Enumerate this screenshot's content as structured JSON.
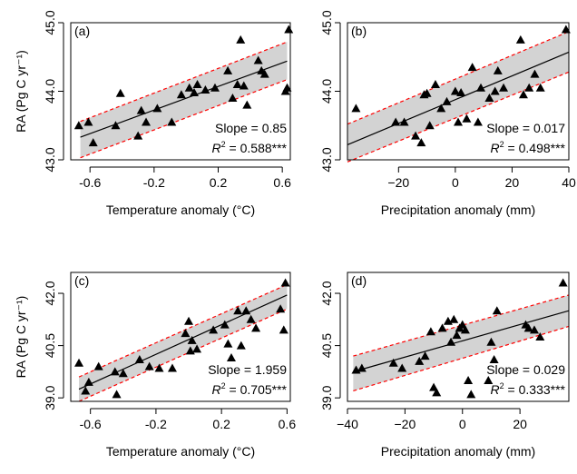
{
  "chart_data": [
    {
      "type": "scatter",
      "panel_label": "(a)",
      "xlabel": "Temperature anomaly (°C)",
      "ylabel": "RA (Pg C yr⁻¹)",
      "xlim": [
        -0.72,
        0.65
      ],
      "ylim": [
        43.0,
        45.0
      ],
      "xticks": [
        -0.6,
        -0.2,
        0.2,
        0.6
      ],
      "xtick_labels": [
        "-0.6",
        "-0.2",
        "0.2",
        "0.6"
      ],
      "yticks": [
        43.0,
        44.0,
        45.0
      ],
      "ytick_labels": [
        "43.0",
        "44.0",
        "45.0"
      ],
      "slope_text": "Slope = 0.85",
      "r2_value": "0.588***",
      "fit": {
        "x0": -0.66,
        "y0": 43.33,
        "x1": 0.63,
        "y1": 44.44
      },
      "ci_upper": {
        "x0": -0.66,
        "y0": 43.56,
        "x1": 0.63,
        "y1": 44.72
      },
      "ci_lower": {
        "x0": -0.66,
        "y0": 43.03,
        "x1": 0.63,
        "y1": 44.17
      },
      "x": [
        -0.67,
        -0.61,
        -0.58,
        -0.44,
        -0.41,
        -0.3,
        -0.28,
        -0.25,
        -0.18,
        -0.09,
        -0.03,
        0.02,
        0.05,
        0.07,
        0.12,
        0.18,
        0.26,
        0.29,
        0.32,
        0.34,
        0.36,
        0.38,
        0.45,
        0.47,
        0.49,
        0.62,
        0.63,
        0.64
      ],
      "y": [
        43.5,
        43.55,
        43.25,
        43.5,
        43.97,
        43.35,
        43.72,
        43.55,
        43.75,
        43.55,
        43.95,
        44.05,
        43.98,
        44.1,
        44.02,
        44.05,
        44.3,
        43.9,
        44.1,
        44.75,
        44.08,
        43.8,
        44.45,
        44.3,
        44.25,
        44.0,
        44.05,
        44.9
      ]
    },
    {
      "type": "scatter",
      "panel_label": "(b)",
      "xlabel": "Precipitation anomaly (mm)",
      "ylabel": "",
      "xlim": [
        -38,
        40
      ],
      "ylim": [
        43.0,
        45.0
      ],
      "xticks": [
        -20,
        0,
        20,
        40
      ],
      "xtick_labels": [
        "−20",
        "0",
        "20",
        "40"
      ],
      "yticks": [
        43.0,
        44.0,
        45.0
      ],
      "ytick_labels": [
        "43.0",
        "44.0",
        "45.0"
      ],
      "slope_text": "Slope = 0.017",
      "r2_value": "0.498***",
      "fit": {
        "x0": -38,
        "y0": 43.22,
        "x1": 40,
        "y1": 44.57
      },
      "ci_upper": {
        "x0": -38,
        "y0": 43.52,
        "x1": 40,
        "y1": 44.87
      },
      "ci_lower": {
        "x0": -38,
        "y0": 42.97,
        "x1": 40,
        "y1": 44.28
      },
      "x": [
        -35,
        -21,
        -18,
        -14,
        -12,
        -11,
        -10,
        -9,
        -7,
        -5,
        -3,
        0,
        1,
        2,
        4,
        6,
        8,
        9,
        12,
        14,
        15,
        17,
        23,
        24,
        26,
        28,
        30,
        39
      ],
      "y": [
        43.75,
        43.55,
        43.55,
        43.35,
        43.25,
        43.95,
        43.97,
        43.5,
        44.1,
        43.75,
        43.85,
        44.0,
        43.55,
        43.98,
        43.6,
        44.35,
        43.55,
        44.05,
        43.9,
        44.0,
        44.3,
        44.05,
        44.75,
        43.95,
        44.05,
        44.25,
        44.05,
        44.9
      ]
    },
    {
      "type": "scatter",
      "panel_label": "(c)",
      "xlabel": "Temperature anomaly (°C)",
      "ylabel": "RA (Pg C yr⁻¹)",
      "xlim": [
        -0.72,
        0.62
      ],
      "ylim": [
        38.9,
        42.6
      ],
      "xticks": [
        -0.6,
        -0.2,
        0.2,
        0.6
      ],
      "xtick_labels": [
        "-0.6",
        "-0.2",
        "0.2",
        "0.6"
      ],
      "yticks": [
        39.0,
        40.5,
        42.0
      ],
      "ytick_labels": [
        "39.0",
        "40.5",
        "42.0"
      ],
      "slope_text": "Slope = 1.959",
      "r2_value": "0.705***",
      "fit": {
        "x0": -0.67,
        "y0": 39.25,
        "x1": 0.6,
        "y1": 41.95
      },
      "ci_upper": {
        "x0": -0.67,
        "y0": 39.6,
        "x1": 0.6,
        "y1": 42.25
      },
      "ci_lower": {
        "x0": -0.67,
        "y0": 38.9,
        "x1": 0.6,
        "y1": 41.55
      },
      "x": [
        -0.67,
        -0.63,
        -0.61,
        -0.55,
        -0.45,
        -0.44,
        -0.4,
        -0.3,
        -0.24,
        -0.18,
        -0.1,
        -0.02,
        0.0,
        0.01,
        0.02,
        0.05,
        0.15,
        0.22,
        0.24,
        0.26,
        0.3,
        0.32,
        0.35,
        0.38,
        0.41,
        0.56,
        0.58,
        0.59
      ],
      "y": [
        40.0,
        39.2,
        39.45,
        39.9,
        39.75,
        39.1,
        39.7,
        40.1,
        39.9,
        39.85,
        39.85,
        40.85,
        41.2,
        40.35,
        40.65,
        40.4,
        40.95,
        41.1,
        40.55,
        40.15,
        41.5,
        40.5,
        41.5,
        41.25,
        41.0,
        41.55,
        40.95,
        42.3
      ]
    },
    {
      "type": "scatter",
      "panel_label": "(d)",
      "xlabel": "Precipitation anomaly (mm)",
      "ylabel": "",
      "xlim": [
        -40,
        37
      ],
      "ylim": [
        38.9,
        42.6
      ],
      "xticks": [
        -40,
        -20,
        0,
        20
      ],
      "xtick_labels": [
        "−40",
        "−20",
        "0",
        "20"
      ],
      "yticks": [
        39.0,
        40.5,
        42.0
      ],
      "ytick_labels": [
        "39.0",
        "40.5",
        "42.0"
      ],
      "slope_text": "Slope = 0.029",
      "r2_value": "0.333***",
      "fit": {
        "x0": -38,
        "y0": 39.75,
        "x1": 37,
        "y1": 41.5
      },
      "ci_upper": {
        "x0": -38,
        "y0": 40.2,
        "x1": 37,
        "y1": 41.95
      },
      "ci_lower": {
        "x0": -38,
        "y0": 39.2,
        "x1": 37,
        "y1": 41.05
      },
      "x": [
        -37,
        -35,
        -24,
        -21,
        -15,
        -13,
        -11,
        -10,
        -9,
        -7,
        -5,
        -4,
        -3,
        -2,
        -1,
        0,
        1,
        2,
        3,
        9,
        10,
        11,
        12,
        22,
        23,
        25,
        27,
        35
      ],
      "y": [
        39.8,
        39.85,
        40.0,
        39.85,
        40.05,
        40.2,
        40.9,
        39.3,
        39.15,
        41.0,
        41.2,
        40.6,
        41.25,
        40.8,
        41.0,
        41.1,
        40.95,
        39.5,
        39.1,
        39.5,
        40.6,
        40.1,
        41.5,
        41.1,
        41.0,
        40.95,
        40.75,
        42.3
      ]
    }
  ]
}
